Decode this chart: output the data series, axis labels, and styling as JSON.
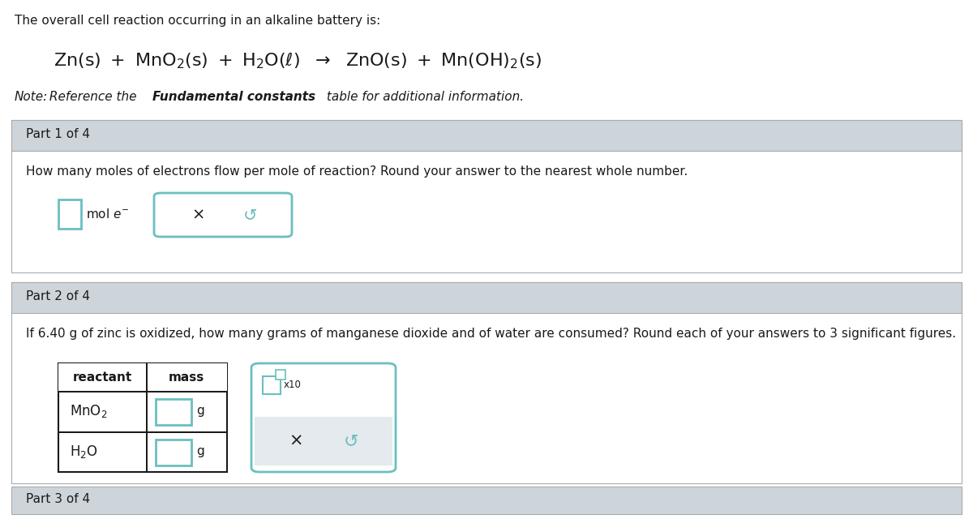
{
  "bg_color": "#ffffff",
  "section_bg": "#cdd5db",
  "content_bg": "#ffffff",
  "border_color": "#aaaaaa",
  "teal_color": "#6bbfbf",
  "teal_light": "#a8d8d8",
  "text_color": "#1a1a1a",
  "gray_band": "#dce3e8",
  "light_gray_btn": "#e4eaee",
  "intro_line1": "The overall cell reaction occurring in an alkaline battery is:",
  "note_italic": "Note: Reference the ",
  "note_bold": "Fundamental constants",
  "note_end": " table for additional information.",
  "part1_label": "Part 1 of 4",
  "part1_q": "How many moles of electrons flow per mole of reaction? Round your answer to the nearest whole number.",
  "part2_label": "Part 2 of 4",
  "part2_q": "If 6.40 g of zinc is oxidized, how many grams of manganese dioxide and of water are consumed? Round each of your answers to 3 significant figures.",
  "reactant_label": "reactant",
  "mass_label": "mass",
  "unit_g": "g",
  "part3_label": "Part 3 of 4"
}
